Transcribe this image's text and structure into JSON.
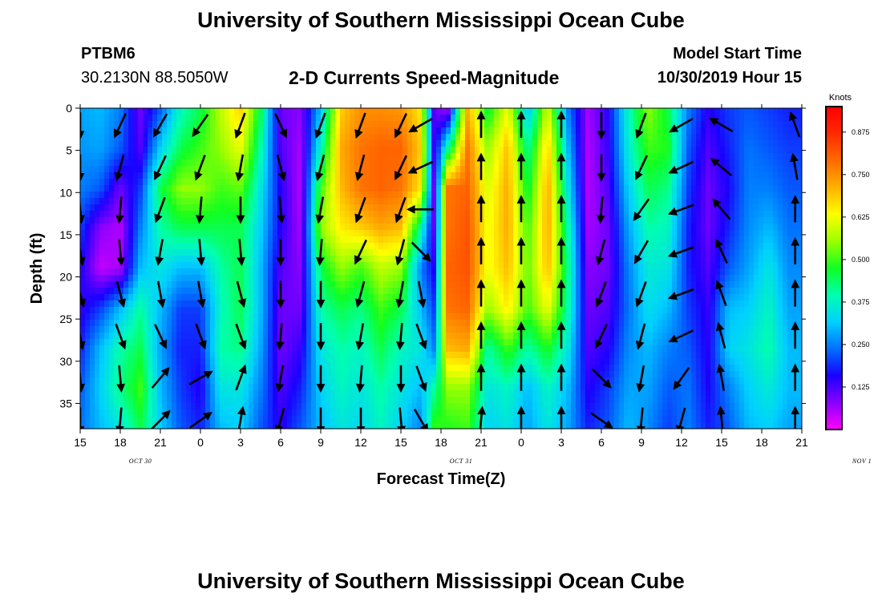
{
  "header": {
    "title": "University of Southern Mississippi Ocean Cube",
    "station": "PTBM6",
    "coords": "30.2130N 88.5050W",
    "subtitle": "2-D Currents Speed-Magnitude",
    "model_label": "Model Start Time",
    "model_time": "10/30/2019 Hour 15"
  },
  "footer": {
    "title": "University of Southern Mississippi Ocean Cube"
  },
  "chart_data": {
    "type": "heatmap",
    "title": "2-D Currents Speed-Magnitude",
    "xlabel": "Forecast Time(Z)",
    "ylabel": "Depth (ft)",
    "x_tick_labels": [
      "15",
      "18",
      "21",
      "0",
      "3",
      "6",
      "9",
      "12",
      "15",
      "18",
      "21",
      "0",
      "3",
      "6",
      "9",
      "12",
      "15",
      "18",
      "21"
    ],
    "x_date_labels": [
      {
        "text": "OCT 30",
        "hour_index": 4.5
      },
      {
        "text": "OCT 31",
        "hour_index": 28.5
      },
      {
        "text": "NOV 1",
        "hour_index": 58.5
      }
    ],
    "x_range_hours": [
      0,
      54
    ],
    "y_ticks": [
      0,
      5,
      10,
      15,
      20,
      25,
      30,
      35
    ],
    "ylim": [
      0,
      38
    ],
    "y_inverted": true,
    "colorbar": {
      "title": "Knots",
      "ticks": [
        0.125,
        0.25,
        0.375,
        0.5,
        0.625,
        0.75,
        0.875
      ],
      "tick_labels": [
        "0.125",
        "0.250",
        "0.375",
        "0.500",
        "0.625",
        "0.750",
        "0.875"
      ],
      "range": [
        0,
        0.95
      ],
      "colors": [
        "#ff00ff",
        "#8a00ff",
        "#1a00ff",
        "#0070ff",
        "#00d0ff",
        "#00ffb0",
        "#10ff20",
        "#9cff00",
        "#ffff00",
        "#ffb000",
        "#ff6a00",
        "#ff2a00",
        "#ff0000"
      ]
    },
    "speed_columns": [
      {
        "t": 0,
        "v": [
          0.28,
          0.27,
          0.25,
          0.2,
          0.16,
          0.14,
          0.18,
          0.22,
          0.24
        ]
      },
      {
        "t": 1.5,
        "v": [
          0.3,
          0.28,
          0.22,
          0.08,
          0.04,
          0.2,
          0.3,
          0.32,
          0.3
        ]
      },
      {
        "t": 3,
        "v": [
          0.25,
          0.22,
          0.1,
          0.05,
          0.06,
          0.3,
          0.4,
          0.42,
          0.35
        ]
      },
      {
        "t": 4.5,
        "v": [
          0.1,
          0.12,
          0.2,
          0.25,
          0.3,
          0.4,
          0.45,
          0.5,
          0.45
        ]
      },
      {
        "t": 6,
        "v": [
          0.22,
          0.32,
          0.45,
          0.4,
          0.35,
          0.3,
          0.28,
          0.3,
          0.32
        ]
      },
      {
        "t": 7.5,
        "v": [
          0.38,
          0.45,
          0.55,
          0.45,
          0.3,
          0.2,
          0.18,
          0.2,
          0.22
        ]
      },
      {
        "t": 9,
        "v": [
          0.45,
          0.5,
          0.55,
          0.45,
          0.3,
          0.2,
          0.18,
          0.15,
          0.18
        ]
      },
      {
        "t": 10.5,
        "v": [
          0.58,
          0.55,
          0.5,
          0.45,
          0.4,
          0.38,
          0.4,
          0.35,
          0.3
        ]
      },
      {
        "t": 12,
        "v": [
          0.68,
          0.62,
          0.52,
          0.45,
          0.45,
          0.45,
          0.42,
          0.35,
          0.32
        ]
      },
      {
        "t": 13.5,
        "v": [
          0.45,
          0.4,
          0.35,
          0.32,
          0.3,
          0.3,
          0.28,
          0.25,
          0.22
        ]
      },
      {
        "t": 15,
        "v": [
          0.1,
          0.12,
          0.15,
          0.15,
          0.12,
          0.1,
          0.1,
          0.12,
          0.15
        ]
      },
      {
        "t": 16.5,
        "v": [
          0.08,
          0.06,
          0.05,
          0.06,
          0.08,
          0.1,
          0.14,
          0.18,
          0.22
        ]
      },
      {
        "t": 18,
        "v": [
          0.3,
          0.38,
          0.5,
          0.55,
          0.45,
          0.4,
          0.35,
          0.32,
          0.3
        ]
      },
      {
        "t": 19.5,
        "v": [
          0.68,
          0.72,
          0.7,
          0.65,
          0.55,
          0.45,
          0.4,
          0.38,
          0.35
        ]
      },
      {
        "t": 21,
        "v": [
          0.75,
          0.78,
          0.78,
          0.68,
          0.5,
          0.42,
          0.38,
          0.35,
          0.33
        ]
      },
      {
        "t": 22.5,
        "v": [
          0.75,
          0.8,
          0.8,
          0.72,
          0.58,
          0.5,
          0.45,
          0.4,
          0.38
        ]
      },
      {
        "t": 24,
        "v": [
          0.74,
          0.8,
          0.78,
          0.7,
          0.55,
          0.45,
          0.38,
          0.35,
          0.32
        ]
      },
      {
        "t": 25.5,
        "v": [
          0.65,
          0.68,
          0.65,
          0.4,
          0.25,
          0.3,
          0.35,
          0.3,
          0.25
        ]
      },
      {
        "t": 26.5,
        "v": [
          0.1,
          0.12,
          0.08,
          0.1,
          0.15,
          0.2,
          0.25,
          0.4,
          0.5
        ]
      },
      {
        "t": 27.5,
        "v": [
          0.05,
          0.4,
          0.78,
          0.78,
          0.8,
          0.78,
          0.7,
          0.55,
          0.48
        ]
      },
      {
        "t": 29,
        "v": [
          0.72,
          0.78,
          0.8,
          0.82,
          0.82,
          0.8,
          0.72,
          0.55,
          0.5
        ]
      },
      {
        "t": 30.5,
        "v": [
          0.45,
          0.55,
          0.6,
          0.62,
          0.62,
          0.55,
          0.4,
          0.35,
          0.32
        ]
      },
      {
        "t": 32,
        "v": [
          0.62,
          0.7,
          0.72,
          0.72,
          0.7,
          0.65,
          0.5,
          0.38,
          0.35
        ]
      },
      {
        "t": 33.5,
        "v": [
          0.3,
          0.4,
          0.45,
          0.5,
          0.52,
          0.5,
          0.4,
          0.3,
          0.28
        ]
      },
      {
        "t": 35,
        "v": [
          0.6,
          0.68,
          0.72,
          0.72,
          0.7,
          0.62,
          0.48,
          0.38,
          0.35
        ]
      },
      {
        "t": 36.5,
        "v": [
          0.25,
          0.3,
          0.35,
          0.4,
          0.42,
          0.4,
          0.35,
          0.3,
          0.28
        ]
      },
      {
        "t": 38,
        "v": [
          0.06,
          0.05,
          0.05,
          0.06,
          0.08,
          0.1,
          0.12,
          0.15,
          0.18
        ]
      },
      {
        "t": 39.5,
        "v": [
          0.15,
          0.14,
          0.12,
          0.1,
          0.1,
          0.12,
          0.15,
          0.2,
          0.22
        ]
      },
      {
        "t": 41,
        "v": [
          0.38,
          0.36,
          0.32,
          0.28,
          0.25,
          0.24,
          0.26,
          0.28,
          0.3
        ]
      },
      {
        "t": 42.5,
        "v": [
          0.55,
          0.5,
          0.45,
          0.4,
          0.36,
          0.34,
          0.3,
          0.28,
          0.26
        ]
      },
      {
        "t": 44,
        "v": [
          0.45,
          0.48,
          0.42,
          0.38,
          0.35,
          0.3,
          0.25,
          0.22,
          0.2
        ]
      },
      {
        "t": 45.5,
        "v": [
          0.25,
          0.22,
          0.2,
          0.18,
          0.18,
          0.2,
          0.22,
          0.24,
          0.25
        ]
      },
      {
        "t": 47,
        "v": [
          0.15,
          0.12,
          0.1,
          0.1,
          0.12,
          0.14,
          0.15,
          0.16,
          0.18
        ]
      },
      {
        "t": 48.5,
        "v": [
          0.2,
          0.18,
          0.16,
          0.18,
          0.22,
          0.3,
          0.32,
          0.25,
          0.22
        ]
      },
      {
        "t": 50,
        "v": [
          0.22,
          0.24,
          0.25,
          0.26,
          0.28,
          0.32,
          0.35,
          0.32,
          0.3
        ]
      },
      {
        "t": 51.5,
        "v": [
          0.2,
          0.22,
          0.25,
          0.3,
          0.35,
          0.38,
          0.4,
          0.36,
          0.32
        ]
      },
      {
        "t": 53,
        "v": [
          0.18,
          0.2,
          0.22,
          0.24,
          0.26,
          0.28,
          0.3,
          0.3,
          0.28
        ]
      },
      {
        "t": 54,
        "v": [
          0.18,
          0.2,
          0.22,
          0.24,
          0.26,
          0.28,
          0.3,
          0.3,
          0.28
        ]
      }
    ],
    "depth_rows": [
      0,
      4.75,
      9.5,
      14.25,
      19,
      23.75,
      28.5,
      33.25,
      38
    ],
    "vector_depths": [
      2,
      7,
      12,
      17,
      22,
      27,
      32,
      37
    ],
    "vector_columns": [
      {
        "t": 0,
        "a": [
          180,
          180,
          175,
          170,
          165,
          170,
          175,
          180
        ]
      },
      {
        "t": 3,
        "a": [
          205,
          195,
          185,
          175,
          165,
          160,
          175,
          185
        ]
      },
      {
        "t": 6,
        "a": [
          210,
          205,
          200,
          190,
          170,
          155,
          40,
          45
        ]
      },
      {
        "t": 9,
        "a": [
          215,
          200,
          185,
          175,
          170,
          160,
          60,
          55
        ]
      },
      {
        "t": 12,
        "a": [
          200,
          190,
          180,
          175,
          165,
          160,
          20,
          10
        ]
      },
      {
        "t": 15,
        "a": [
          155,
          165,
          175,
          180,
          180,
          185,
          190,
          195
        ]
      },
      {
        "t": 18,
        "a": [
          200,
          195,
          190,
          185,
          180,
          180,
          180,
          180
        ]
      },
      {
        "t": 21,
        "a": [
          200,
          195,
          200,
          205,
          195,
          190,
          185,
          180
        ]
      },
      {
        "t": 24,
        "a": [
          205,
          205,
          200,
          195,
          190,
          185,
          180,
          175
        ]
      },
      {
        "t": 25.5,
        "a": [
          240,
          245,
          270,
          135,
          170,
          160,
          160,
          150
        ]
      },
      {
        "t": 30,
        "a": [
          0,
          0,
          0,
          0,
          0,
          0,
          0,
          5
        ]
      },
      {
        "t": 33,
        "a": [
          0,
          0,
          0,
          0,
          0,
          0,
          0,
          0
        ]
      },
      {
        "t": 36,
        "a": [
          0,
          0,
          0,
          0,
          0,
          0,
          0,
          0
        ]
      },
      {
        "t": 39,
        "a": [
          180,
          180,
          185,
          195,
          200,
          205,
          135,
          125
        ]
      },
      {
        "t": 42,
        "a": [
          200,
          205,
          215,
          210,
          200,
          195,
          190,
          185
        ]
      },
      {
        "t": 45,
        "a": [
          240,
          245,
          250,
          250,
          250,
          245,
          215,
          195
        ]
      },
      {
        "t": 48,
        "a": [
          300,
          310,
          320,
          335,
          340,
          345,
          350,
          355
        ]
      },
      {
        "t": 53.5,
        "a": [
          340,
          350,
          0,
          0,
          0,
          0,
          0,
          0
        ]
      }
    ]
  }
}
